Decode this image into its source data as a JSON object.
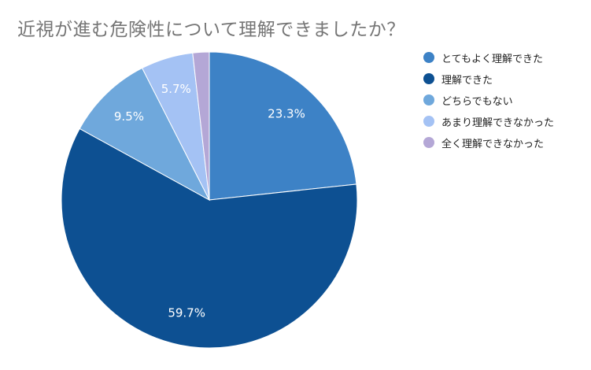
{
  "chart_data": {
    "type": "pie",
    "title": "近視が進む危険性について理解できましたか？",
    "slices": [
      {
        "label": "とてもよく理解できた",
        "value": 23.3,
        "value_label": "23.3%",
        "color": "#3d82c6"
      },
      {
        "label": "理解できた",
        "value": 59.7,
        "value_label": "59.7%",
        "color": "#0d5092"
      },
      {
        "label": "どちらでもない",
        "value": 9.5,
        "value_label": "9.5%",
        "color": "#6fa8dc"
      },
      {
        "label": "あまり理解できなかった",
        "value": 5.7,
        "value_label": "5.7%",
        "color": "#a4c2f4"
      },
      {
        "label": "全く理解できなかった",
        "value": 1.8,
        "value_label": "",
        "color": "#b4a7d6"
      }
    ],
    "start_angle": "12 o'clock",
    "direction": "clockwise",
    "legend_position": "right"
  }
}
